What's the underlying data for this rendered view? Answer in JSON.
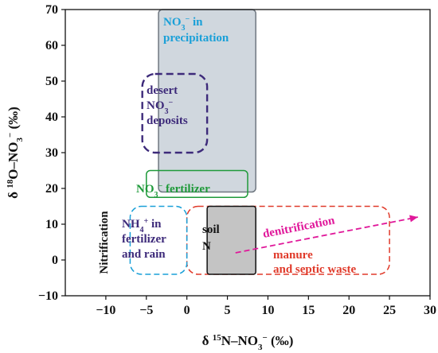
{
  "chart_data": {
    "type": "region-plot",
    "title": "",
    "xlabel": {
      "prefix": "δ ",
      "sup": "15",
      "main": "N–NO",
      "sub": "3",
      "sup2": "−",
      "unit": " (‰)"
    },
    "ylabel": {
      "prefix": "δ ",
      "sup": "18",
      "main": "O–NO",
      "sub": "3",
      "sup2": "−",
      "unit": " (‰)"
    },
    "xlim": [
      -15,
      30
    ],
    "ylim": [
      -10,
      70
    ],
    "xticks": [
      -10,
      -5,
      0,
      5,
      10,
      15,
      20,
      25,
      30
    ],
    "yticks": [
      -10,
      0,
      10,
      20,
      30,
      40,
      50,
      60,
      70
    ],
    "regions": [
      {
        "id": "precipitation",
        "lines": [
          {
            "runs": [
              {
                "t": "NO"
              },
              {
                "t": "3",
                "sub": true
              },
              {
                "t": "−",
                "sup": true
              },
              {
                "t": " in"
              }
            ]
          },
          {
            "runs": [
              {
                "t": "precipitation"
              }
            ]
          }
        ],
        "x_range": [
          -3.5,
          8.5
        ],
        "y_range": [
          19,
          70
        ],
        "fill": "#c8d0d8",
        "stroke": "#6f7780",
        "dashed": false,
        "text_color": "#1aa0d8"
      },
      {
        "id": "desert",
        "lines": [
          {
            "runs": [
              {
                "t": "desert"
              }
            ]
          },
          {
            "runs": [
              {
                "t": "NO"
              },
              {
                "t": "3",
                "sub": true
              },
              {
                "t": "−",
                "sup": true
              }
            ]
          },
          {
            "runs": [
              {
                "t": "deposits"
              }
            ]
          }
        ],
        "x_range": [
          -5.5,
          2.5
        ],
        "y_range": [
          30,
          52
        ],
        "fill": "none",
        "stroke": "#3d2a7a",
        "dashed": true,
        "text_color": "#3d2a7a"
      },
      {
        "id": "fertilizer",
        "lines": [
          {
            "runs": [
              {
                "t": "NO"
              },
              {
                "t": "3",
                "sub": true
              },
              {
                "t": "−",
                "sup": true
              },
              {
                "t": " fertilizer"
              }
            ]
          }
        ],
        "x_range": [
          -5,
          7.5
        ],
        "y_range": [
          17.5,
          25
        ],
        "fill": "none",
        "stroke": "#1f9a3a",
        "dashed": false,
        "text_color": "#1f9a3a"
      },
      {
        "id": "ammonium",
        "lines": [
          {
            "runs": [
              {
                "t": "NH"
              },
              {
                "t": "4",
                "sub": true
              },
              {
                "t": "+",
                "sup": true
              },
              {
                "t": " in"
              }
            ]
          },
          {
            "runs": [
              {
                "t": "fertilizer"
              }
            ]
          },
          {
            "runs": [
              {
                "t": "and rain"
              }
            ]
          }
        ],
        "x_range": [
          -7,
          0
        ],
        "y_range": [
          -4,
          15
        ],
        "fill": "none",
        "stroke": "#1aa0d8",
        "dashed": true,
        "text_color": "#3d2a7a"
      },
      {
        "id": "manure",
        "lines": [
          {
            "runs": [
              {
                "t": "manure"
              }
            ]
          },
          {
            "runs": [
              {
                "t": "and septic waste"
              }
            ]
          }
        ],
        "x_range": [
          0,
          25
        ],
        "y_range": [
          -4,
          15
        ],
        "fill": "none",
        "stroke": "#e03a2a",
        "dashed": true,
        "text_color": "#e03a2a"
      },
      {
        "id": "soil",
        "lines": [
          {
            "runs": [
              {
                "t": "soil"
              }
            ]
          },
          {
            "runs": [
              {
                "t": "N"
              }
            ]
          }
        ],
        "x_range": [
          2.5,
          8.5
        ],
        "y_range": [
          -4,
          15
        ],
        "fill": "#c4c4c4",
        "stroke": "#111111",
        "dashed": false,
        "text_color": "#111111"
      }
    ],
    "annotations": {
      "nitrification": {
        "text": "Nitrification",
        "color": "#111111"
      },
      "denitrification": {
        "text": "denitrification",
        "color": "#e0189a",
        "from": [
          6,
          2
        ],
        "to": [
          28.5,
          12
        ]
      }
    }
  }
}
